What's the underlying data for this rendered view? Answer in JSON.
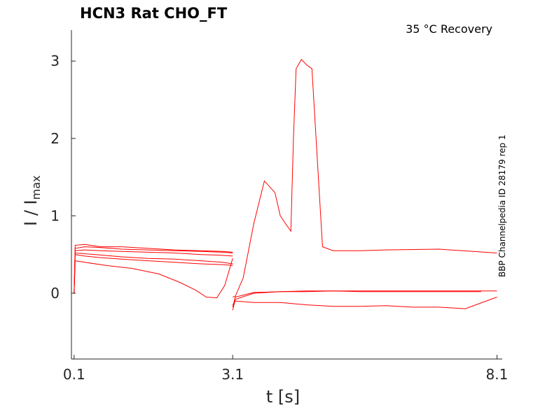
{
  "chart_data": {
    "type": "line",
    "title": "HCN3  Rat  CHO_FT",
    "condition": "35 °C  Recovery",
    "side_label": "BBP Channelpedia ID 28179 rep 1",
    "xlabel": "t [s]",
    "ylabel_main": "I / I",
    "ylabel_sub": "max",
    "xlim": [
      0.05,
      8.2
    ],
    "ylim": [
      -0.85,
      3.4
    ],
    "xticks": [
      0.1,
      3.1,
      8.1
    ],
    "xtick_labels": [
      "0.1",
      "3.1",
      "8.1"
    ],
    "yticks": [
      0,
      1,
      2,
      3
    ],
    "ytick_labels": [
      "0",
      "1",
      "2",
      "3"
    ],
    "grid": false,
    "line_color": "#ff0000",
    "series": [
      {
        "x": [
          0.05,
          0.1,
          0.12,
          0.3,
          0.6,
          1.0,
          1.5,
          2.0,
          2.5,
          2.9,
          3.1
        ],
        "y": [
          0.0,
          0.0,
          0.58,
          0.6,
          0.59,
          0.57,
          0.56,
          0.55,
          0.54,
          0.53,
          0.52
        ]
      },
      {
        "x": [
          0.05,
          0.1,
          0.12,
          0.3,
          0.6,
          1.0,
          1.5,
          2.0,
          2.5,
          2.9,
          3.1
        ],
        "y": [
          0.0,
          0.0,
          0.62,
          0.63,
          0.6,
          0.6,
          0.58,
          0.56,
          0.55,
          0.54,
          0.53
        ]
      },
      {
        "x": [
          0.05,
          0.1,
          0.12,
          0.3,
          0.6,
          1.0,
          1.5,
          2.0,
          2.5,
          2.9,
          3.1
        ],
        "y": [
          0.0,
          0.0,
          0.55,
          0.56,
          0.55,
          0.54,
          0.53,
          0.52,
          0.5,
          0.49,
          0.48
        ]
      },
      {
        "x": [
          0.05,
          0.1,
          0.12,
          0.3,
          0.6,
          1.0,
          1.5,
          2.0,
          2.5,
          2.9,
          3.1
        ],
        "y": [
          0.0,
          0.0,
          0.5,
          0.48,
          0.46,
          0.44,
          0.42,
          0.4,
          0.38,
          0.37,
          0.36
        ]
      },
      {
        "x": [
          0.05,
          0.1,
          0.12,
          0.3,
          0.7,
          1.2,
          1.7,
          2.1,
          2.4,
          2.6,
          2.8,
          2.95,
          3.1
        ],
        "y": [
          0.0,
          0.0,
          0.42,
          0.4,
          0.36,
          0.32,
          0.25,
          0.14,
          0.04,
          -0.05,
          -0.06,
          0.1,
          0.45
        ]
      },
      {
        "x": [
          0.05,
          0.1,
          0.12,
          0.5,
          1.0,
          1.5,
          2.0,
          2.5,
          2.9,
          3.1
        ],
        "y": [
          0.0,
          0.0,
          0.52,
          0.5,
          0.47,
          0.45,
          0.44,
          0.42,
          0.4,
          0.38
        ]
      },
      {
        "x": [
          3.1,
          3.15,
          3.3,
          3.5,
          3.7,
          3.9,
          4.0,
          4.1,
          4.2,
          4.25,
          4.3,
          4.4,
          4.5,
          4.6,
          4.8,
          5.0,
          5.5,
          6.0,
          7.0,
          8.1
        ],
        "y": [
          -0.05,
          -0.04,
          0.2,
          0.9,
          1.45,
          1.3,
          1.0,
          0.9,
          0.8,
          2.0,
          2.9,
          3.02,
          2.95,
          2.9,
          0.6,
          0.55,
          0.55,
          0.56,
          0.57,
          0.52
        ]
      },
      {
        "x": [
          3.1,
          3.15,
          3.5,
          4.0,
          4.5,
          5.0,
          5.5,
          6.0,
          6.5,
          7.0,
          7.5,
          8.1
        ],
        "y": [
          -0.22,
          -0.08,
          0.0,
          0.02,
          0.03,
          0.03,
          0.03,
          0.03,
          0.03,
          0.03,
          0.03,
          0.03
        ]
      },
      {
        "x": [
          3.1,
          3.15,
          3.5,
          4.0,
          4.5,
          5.0,
          5.5,
          6.0,
          6.5,
          7.0,
          7.5,
          7.8
        ],
        "y": [
          -0.18,
          -0.05,
          0.01,
          0.02,
          0.02,
          0.03,
          0.02,
          0.02,
          0.02,
          0.02,
          0.02,
          0.02
        ]
      },
      {
        "x": [
          3.1,
          3.15,
          3.5,
          4.0,
          4.5,
          5.0,
          5.5,
          6.0,
          6.5,
          7.0,
          7.5,
          8.1
        ],
        "y": [
          -0.15,
          -0.1,
          -0.12,
          -0.12,
          -0.15,
          -0.17,
          -0.17,
          -0.16,
          -0.18,
          -0.18,
          -0.2,
          -0.05
        ]
      }
    ]
  }
}
